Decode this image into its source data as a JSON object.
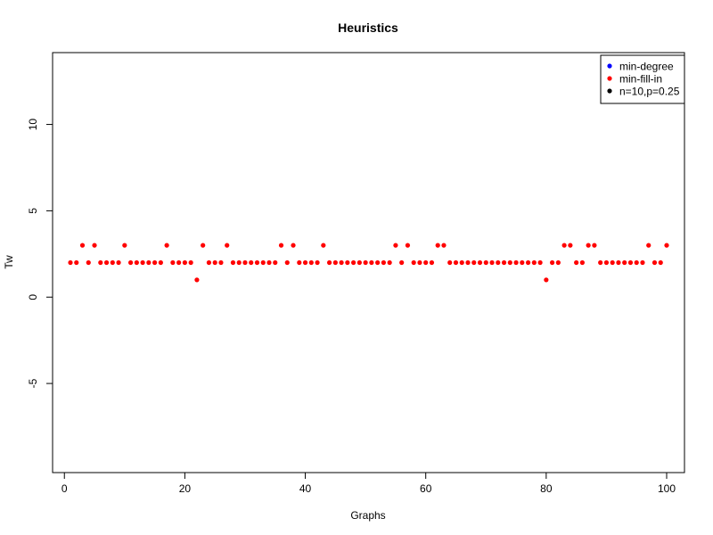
{
  "chart_data": {
    "type": "scatter",
    "title": "Heuristics",
    "xlabel": "Graphs",
    "ylabel": "Tw",
    "xlim": [
      -1.96,
      102.96
    ],
    "ylim": [
      -10.16,
      14.16
    ],
    "x_ticks": [
      0,
      20,
      40,
      60,
      80,
      100
    ],
    "y_ticks": [
      -5,
      0,
      5,
      10
    ],
    "legend": {
      "position": "top-right",
      "entries": [
        {
          "label": "min-degree",
          "color": "#0000ff"
        },
        {
          "label": "min-fill-in",
          "color": "#ff0000"
        },
        {
          "label": "n=10,p=0.25",
          "color": "#000000"
        }
      ]
    },
    "series": [
      {
        "name": "min-fill-in",
        "color": "#ff0000",
        "x": [
          1,
          2,
          3,
          4,
          5,
          6,
          7,
          8,
          9,
          10,
          11,
          12,
          13,
          14,
          15,
          16,
          17,
          18,
          19,
          20,
          21,
          22,
          23,
          24,
          25,
          26,
          27,
          28,
          29,
          30,
          31,
          32,
          33,
          34,
          35,
          36,
          37,
          38,
          39,
          40,
          41,
          42,
          43,
          44,
          45,
          46,
          47,
          48,
          49,
          50,
          51,
          52,
          53,
          54,
          55,
          56,
          57,
          58,
          59,
          60,
          61,
          62,
          63,
          64,
          65,
          66,
          67,
          68,
          69,
          70,
          71,
          72,
          73,
          74,
          75,
          76,
          77,
          78,
          79,
          80,
          81,
          82,
          83,
          84,
          85,
          86,
          87,
          88,
          89,
          90,
          91,
          92,
          93,
          94,
          95,
          96,
          97,
          98,
          99,
          100
        ],
        "y": [
          2,
          2,
          3,
          2,
          3,
          2,
          2,
          2,
          2,
          3,
          2,
          2,
          2,
          2,
          2,
          2,
          3,
          2,
          2,
          2,
          2,
          1,
          3,
          2,
          2,
          2,
          3,
          2,
          2,
          2,
          2,
          2,
          2,
          2,
          2,
          3,
          2,
          3,
          2,
          2,
          2,
          2,
          3,
          2,
          2,
          2,
          2,
          2,
          2,
          2,
          2,
          2,
          2,
          2,
          3,
          2,
          3,
          2,
          2,
          2,
          2,
          3,
          3,
          2,
          2,
          2,
          2,
          2,
          2,
          2,
          2,
          2,
          2,
          2,
          2,
          2,
          2,
          2,
          2,
          1,
          2,
          2,
          3,
          3,
          2,
          2,
          3,
          3,
          2,
          2,
          2,
          2,
          2,
          2,
          2,
          2,
          3,
          2,
          2,
          3
        ]
      }
    ]
  }
}
